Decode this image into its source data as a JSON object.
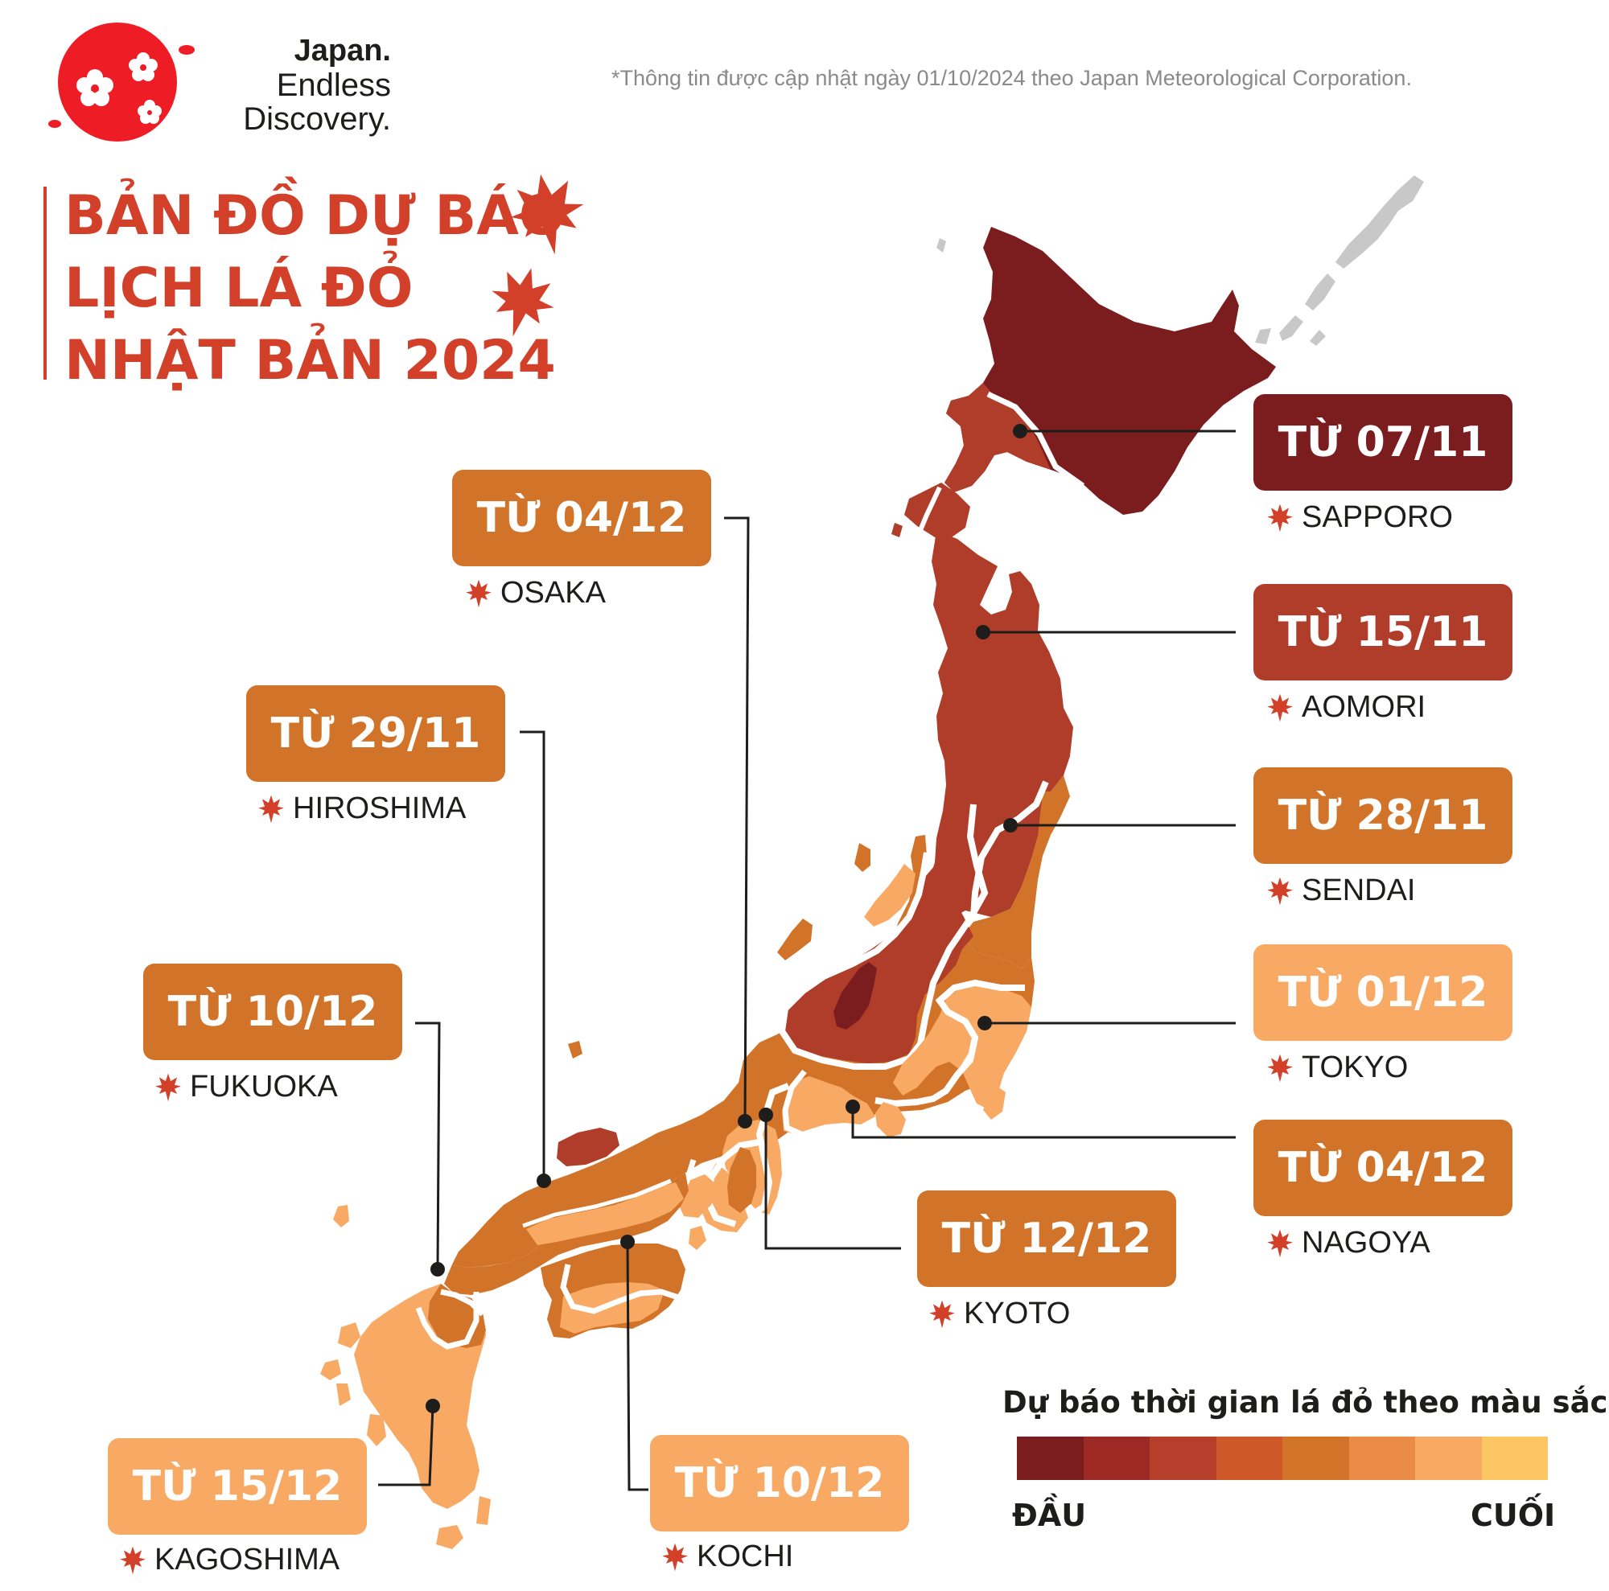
{
  "brand": {
    "line1": "Japan.",
    "line2": "Endless",
    "line3": "Discovery."
  },
  "footnote": "*Thông tin được cập nhật ngày 01/10/2024 theo Japan Meteorological Corporation.",
  "title": {
    "line1": "BẢN ĐỒ DỰ BÁO",
    "line2": "LỊCH LÁ ĐỎ",
    "line3": "NHẬT BẢN 2024"
  },
  "colors": {
    "title": "#d2402a",
    "logo_red": "#ee1c25",
    "tier1": "#7b1c1e",
    "tier2": "#b03d29",
    "tier3": "#d1742a",
    "tier4": "#f8a963",
    "islands_gray": "#c8c8c8"
  },
  "cities": [
    {
      "id": "sapporo",
      "name": "SAPPORO",
      "label": "TỪ 07/11",
      "color": "#7b1c1e"
    },
    {
      "id": "aomori",
      "name": "AOMORI",
      "label": "TỪ 15/11",
      "color": "#b03d29"
    },
    {
      "id": "sendai",
      "name": "SENDAI",
      "label": "TỪ 28/11",
      "color": "#d1742a"
    },
    {
      "id": "tokyo",
      "name": "TOKYO",
      "label": "TỪ 01/12",
      "color": "#f8a963"
    },
    {
      "id": "nagoya",
      "name": "NAGOYA",
      "label": "TỪ 04/12",
      "color": "#d1742a"
    },
    {
      "id": "kyoto",
      "name": "KYOTO",
      "label": "TỪ 12/12",
      "color": "#d1742a"
    },
    {
      "id": "osaka",
      "name": "OSAKA",
      "label": "TỪ 04/12",
      "color": "#d1742a"
    },
    {
      "id": "hiroshima",
      "name": "HIROSHIMA",
      "label": "TỪ 29/11",
      "color": "#d1742a"
    },
    {
      "id": "fukuoka",
      "name": "FUKUOKA",
      "label": "TỪ 10/12",
      "color": "#d1742a"
    },
    {
      "id": "kagoshima",
      "name": "KAGOSHIMA",
      "label": "TỪ 15/12",
      "color": "#f8a963"
    },
    {
      "id": "kochi",
      "name": "KOCHI",
      "label": "TỪ 10/12",
      "color": "#f8a963"
    }
  ],
  "legend": {
    "title": "Dự báo thời gian lá đỏ theo màu sắc",
    "start": "ĐẦU",
    "end": "CUỐI",
    "colors": [
      "#7b1c1e",
      "#9e2a25",
      "#b53f2a",
      "#cf5829",
      "#d1742a",
      "#ea8c45",
      "#f8a963",
      "#fcc763"
    ]
  }
}
